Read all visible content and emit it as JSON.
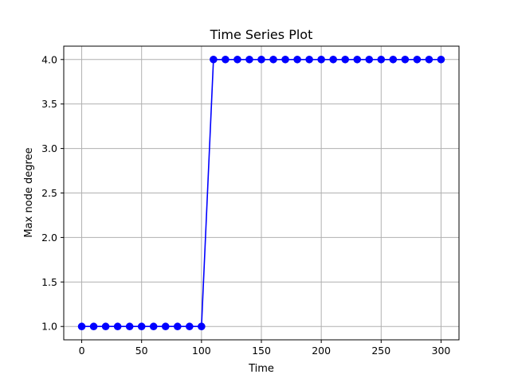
{
  "chart_data": {
    "type": "line",
    "title": "Time Series Plot",
    "xlabel": "Time",
    "ylabel": "Max node degree",
    "xlim": [
      -15,
      315
    ],
    "ylim": [
      0.85,
      4.15
    ],
    "xticks": [
      0,
      50,
      100,
      150,
      200,
      250,
      300
    ],
    "yticks": [
      1.0,
      1.5,
      2.0,
      2.5,
      3.0,
      3.5,
      4.0
    ],
    "xtick_labels": [
      "0",
      "50",
      "100",
      "150",
      "200",
      "250",
      "300"
    ],
    "ytick_labels": [
      "1.0",
      "1.5",
      "2.0",
      "2.5",
      "3.0",
      "3.5",
      "4.0"
    ],
    "grid": true,
    "marker": "circle",
    "series": [
      {
        "color": "#0000ff",
        "x": [
          0,
          10,
          20,
          30,
          40,
          50,
          60,
          70,
          80,
          90,
          100,
          110,
          120,
          130,
          140,
          150,
          160,
          170,
          180,
          190,
          200,
          210,
          220,
          230,
          240,
          250,
          260,
          270,
          280,
          290,
          300
        ],
        "y": [
          1,
          1,
          1,
          1,
          1,
          1,
          1,
          1,
          1,
          1,
          1,
          4,
          4,
          4,
          4,
          4,
          4,
          4,
          4,
          4,
          4,
          4,
          4,
          4,
          4,
          4,
          4,
          4,
          4,
          4,
          4
        ]
      }
    ]
  }
}
